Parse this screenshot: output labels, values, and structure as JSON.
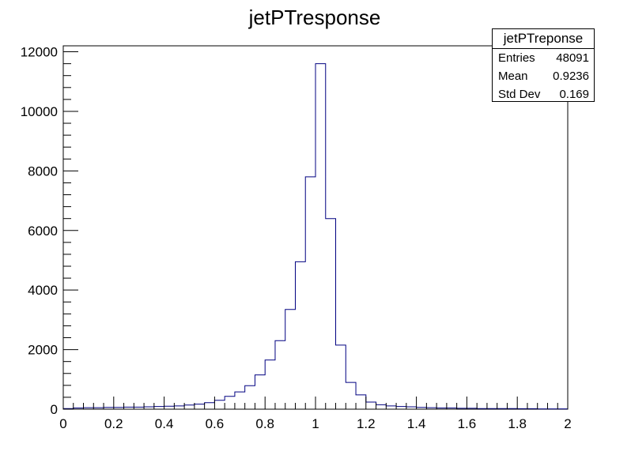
{
  "chart_data": {
    "type": "bar",
    "title": "jetPTresponse",
    "xlabel": "",
    "ylabel": "",
    "xlim": [
      0,
      2
    ],
    "ylim": [
      0,
      12200
    ],
    "x_ticks": [
      "0",
      "0.2",
      "0.4",
      "0.6",
      "0.8",
      "1",
      "1.2",
      "1.4",
      "1.6",
      "1.8",
      "2"
    ],
    "y_ticks": [
      "0",
      "2000",
      "4000",
      "6000",
      "8000",
      "10000",
      "12000"
    ],
    "x_tick_values": [
      0,
      0.2,
      0.4,
      0.6,
      0.8,
      1.0,
      1.2,
      1.4,
      1.6,
      1.8,
      2.0
    ],
    "y_tick_values": [
      0,
      2000,
      4000,
      6000,
      8000,
      10000,
      12000
    ],
    "bin_width": 0.04,
    "bin_low_edges": [
      0.0,
      0.04,
      0.08,
      0.12,
      0.16,
      0.2,
      0.24,
      0.28,
      0.32,
      0.36,
      0.4,
      0.44,
      0.48,
      0.52,
      0.56,
      0.6,
      0.64,
      0.68,
      0.72,
      0.76,
      0.8,
      0.84,
      0.88,
      0.92,
      0.96,
      1.0,
      1.04,
      1.08,
      1.12,
      1.16,
      1.2,
      1.24,
      1.28,
      1.32,
      1.36,
      1.4,
      1.44,
      1.48,
      1.52,
      1.56,
      1.6,
      1.64,
      1.68,
      1.72,
      1.76,
      1.8,
      1.84,
      1.88,
      1.92,
      1.96
    ],
    "values": [
      20,
      40,
      50,
      50,
      60,
      60,
      70,
      70,
      80,
      90,
      100,
      110,
      140,
      170,
      220,
      300,
      430,
      580,
      790,
      1150,
      1650,
      2300,
      3350,
      4950,
      7800,
      11600,
      6400,
      2150,
      900,
      480,
      240,
      150,
      110,
      90,
      80,
      60,
      50,
      40,
      40,
      30,
      30,
      20,
      20,
      20,
      20,
      15,
      15,
      10,
      10,
      10
    ],
    "line_color": "#000080",
    "grid": false
  },
  "stats": {
    "title": "jetPTreponse",
    "rows": [
      {
        "label": "Entries",
        "value": "48091"
      },
      {
        "label": "Mean",
        "value": "0.9236"
      },
      {
        "label": "Std Dev",
        "value": "0.169"
      }
    ]
  }
}
